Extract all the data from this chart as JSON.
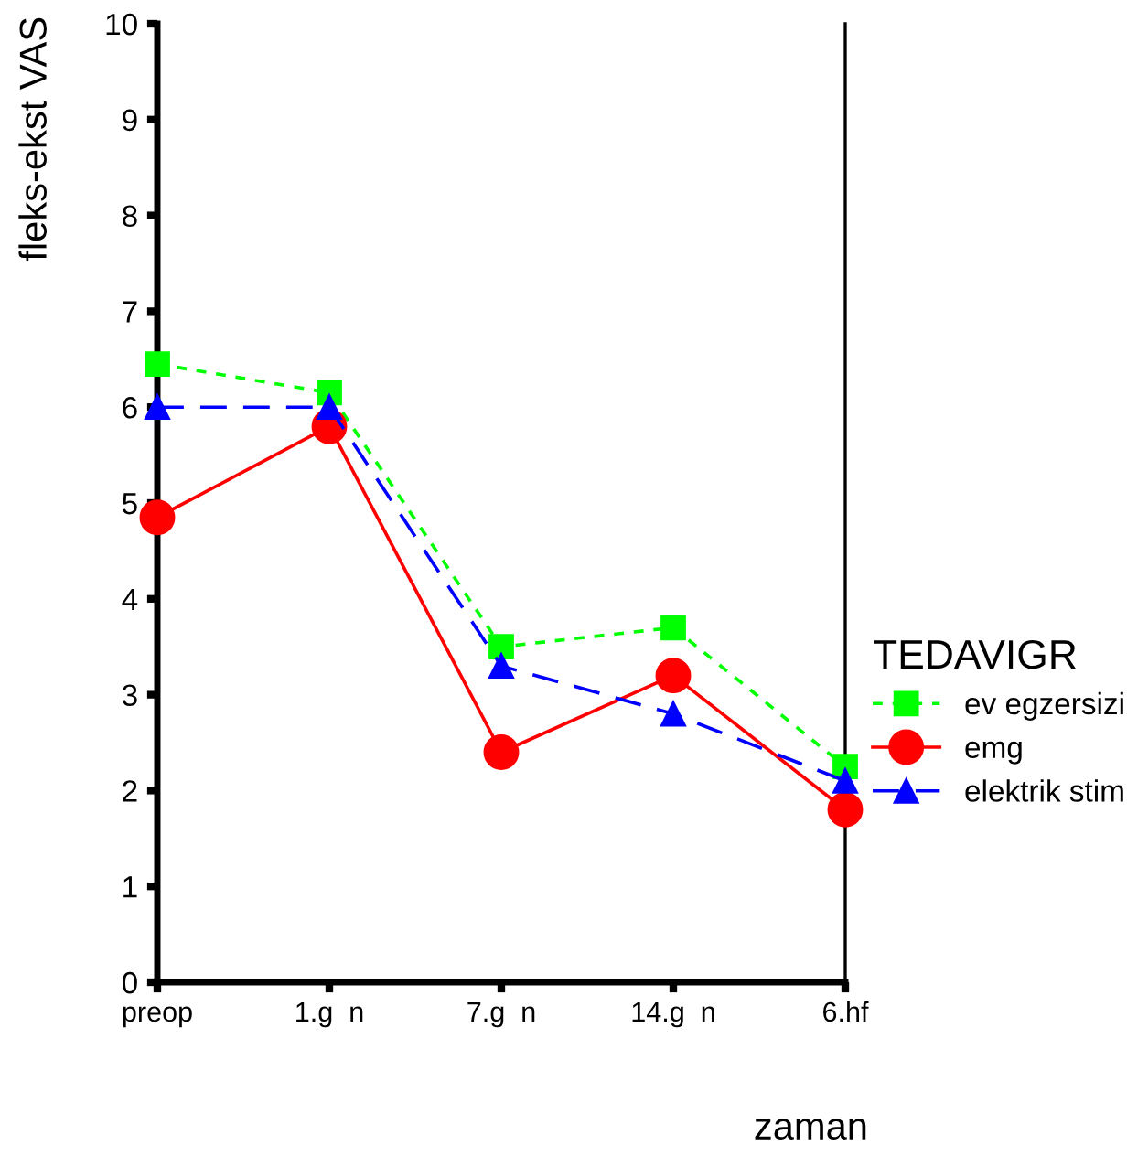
{
  "chart_data": {
    "type": "line",
    "xlabel": "zaman",
    "ylabel": "fleks-ekst VAS",
    "legend_title": "TEDAVIGR",
    "categories": [
      "preop",
      "1.g  n",
      "7.g  n",
      "14.g  n",
      "6.hf"
    ],
    "series": [
      {
        "name": "ev egzersizi",
        "color": "#00ff00",
        "values": [
          6.45,
          6.15,
          3.5,
          3.7,
          2.25
        ],
        "marker": "square",
        "line_style": "dotted"
      },
      {
        "name": "emg",
        "color": "#ff0000",
        "values": [
          4.85,
          5.8,
          2.4,
          3.2,
          1.8
        ],
        "marker": "circle",
        "line_style": "solid"
      },
      {
        "name": "elektrik stim",
        "color": "#0000ff",
        "values": [
          6.0,
          6.0,
          3.3,
          2.8,
          2.1
        ],
        "marker": "triangle",
        "line_style": "dashed"
      }
    ],
    "ylim": [
      0,
      10
    ],
    "yticks": [
      0,
      1,
      2,
      3,
      4,
      5,
      6,
      7,
      8,
      9,
      10
    ],
    "grid": false,
    "legend": "right"
  }
}
